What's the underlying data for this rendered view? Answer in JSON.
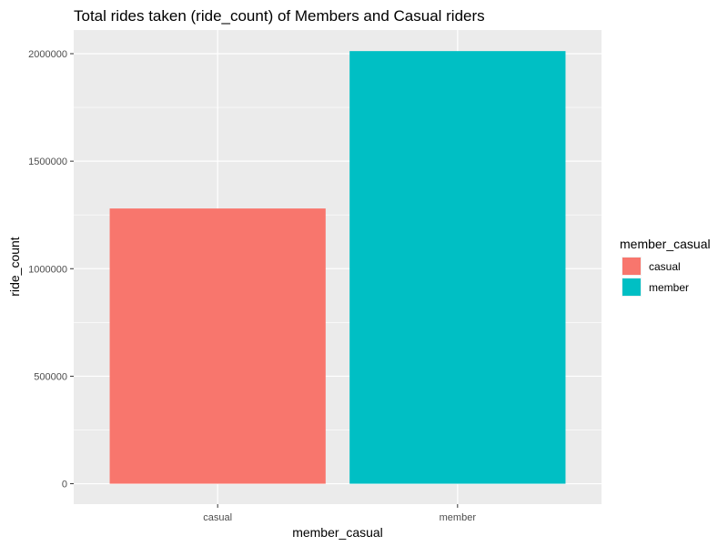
{
  "chart_data": {
    "type": "bar",
    "title": "Total rides taken (ride_count) of Members and Casual riders",
    "xlabel": "member_casual",
    "ylabel": "ride_count",
    "categories": [
      "casual",
      "member"
    ],
    "values": [
      1280000,
      2012000
    ],
    "colors": [
      "#F8766D",
      "#00BFC4"
    ],
    "ylim": [
      -95000,
      2110000
    ],
    "yticks": [
      0,
      500000,
      1000000,
      1500000,
      2000000
    ],
    "ytick_labels": [
      "0",
      "500000",
      "1000000",
      "1500000",
      "2000000"
    ],
    "grid": true,
    "panel_background": "#EBEBEB",
    "legend": {
      "title": "member_casual",
      "position": "right",
      "entries": [
        {
          "label": "casual",
          "color": "#F8766D"
        },
        {
          "label": "member",
          "color": "#00BFC4"
        }
      ]
    }
  }
}
